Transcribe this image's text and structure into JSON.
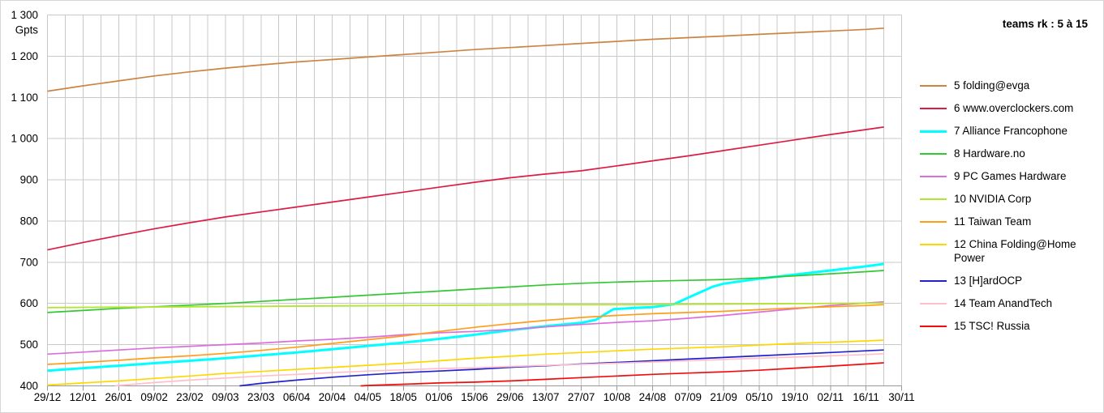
{
  "title": "teams rk : 5 à 15",
  "y_axis": {
    "unit": "Gpts",
    "min": 400,
    "max": 1300,
    "step": 100,
    "labels": [
      "1 300",
      "1 200",
      "1 100",
      "1 000",
      "900",
      "800",
      "700",
      "600",
      "500",
      "400"
    ]
  },
  "x_axis": {
    "labels": [
      "29/12",
      "12/01",
      "26/01",
      "09/02",
      "23/02",
      "09/03",
      "23/03",
      "06/04",
      "20/04",
      "04/05",
      "18/05",
      "01/06",
      "15/06",
      "29/06",
      "13/07",
      "27/07",
      "10/08",
      "24/08",
      "07/09",
      "21/09",
      "05/10",
      "19/10",
      "02/11",
      "16/11",
      "30/11"
    ]
  },
  "chart_data": {
    "type": "line",
    "title": "teams rk : 5 à 15",
    "xlabel": "",
    "ylabel": "Gpts",
    "ylim": [
      400,
      1300
    ],
    "grid": "on",
    "legend_position": "right",
    "x_tick_unit_days": 14,
    "categories": [
      "29/12",
      "12/01",
      "26/01",
      "09/02",
      "23/02",
      "09/03",
      "23/03",
      "06/04",
      "20/04",
      "04/05",
      "18/05",
      "01/06",
      "15/06",
      "29/06",
      "13/07",
      "27/07",
      "10/08",
      "24/08",
      "07/09",
      "21/09",
      "05/10",
      "19/10",
      "02/11",
      "16/11",
      "30/11"
    ],
    "series": [
      {
        "rank": 5,
        "name": "folding@evga",
        "label": "5 folding@evga",
        "color": "#cd8442",
        "width": 1.7,
        "points": [
          [
            0,
            1115
          ],
          [
            1,
            1128
          ],
          [
            2,
            1140
          ],
          [
            3,
            1152
          ],
          [
            4,
            1162
          ],
          [
            5,
            1171
          ],
          [
            6,
            1179
          ],
          [
            7,
            1186
          ],
          [
            8,
            1192
          ],
          [
            9,
            1198
          ],
          [
            10,
            1204
          ],
          [
            11,
            1210
          ],
          [
            12,
            1216
          ],
          [
            13,
            1221
          ],
          [
            14,
            1226
          ],
          [
            15,
            1231
          ],
          [
            16,
            1236
          ],
          [
            17,
            1241
          ],
          [
            18,
            1245
          ],
          [
            19,
            1249
          ],
          [
            20,
            1253
          ],
          [
            21,
            1257
          ],
          [
            22,
            1261
          ],
          [
            23,
            1265
          ],
          [
            23.5,
            1268
          ]
        ]
      },
      {
        "rank": 6,
        "name": "www.overclockers.com",
        "label": "6 www.overclockers.com",
        "color": "#dc1c44",
        "width": 1.7,
        "points": [
          [
            0,
            730
          ],
          [
            1,
            748
          ],
          [
            2,
            765
          ],
          [
            3,
            781
          ],
          [
            4,
            796
          ],
          [
            5,
            810
          ],
          [
            6,
            822
          ],
          [
            7,
            834
          ],
          [
            8,
            846
          ],
          [
            9,
            858
          ],
          [
            10,
            870
          ],
          [
            11,
            882
          ],
          [
            12,
            894
          ],
          [
            13,
            905
          ],
          [
            14,
            914
          ],
          [
            15,
            922
          ],
          [
            16,
            934
          ],
          [
            17,
            946
          ],
          [
            18,
            958
          ],
          [
            19,
            971
          ],
          [
            20,
            984
          ],
          [
            21,
            997
          ],
          [
            22,
            1010
          ],
          [
            23,
            1022
          ],
          [
            23.5,
            1028
          ]
        ]
      },
      {
        "rank": 7,
        "name": "Alliance Francophone",
        "label": "7 Alliance Francophone",
        "color": "#00ffff",
        "width": 3,
        "points": [
          [
            0,
            437
          ],
          [
            1,
            443
          ],
          [
            2,
            449
          ],
          [
            3,
            455
          ],
          [
            4,
            461
          ],
          [
            5,
            467
          ],
          [
            6,
            474
          ],
          [
            7,
            481
          ],
          [
            8,
            489
          ],
          [
            9,
            497
          ],
          [
            10,
            505
          ],
          [
            11,
            514
          ],
          [
            12,
            524
          ],
          [
            13,
            535
          ],
          [
            14,
            545
          ],
          [
            15,
            553
          ],
          [
            15.4,
            560
          ],
          [
            15.9,
            586
          ],
          [
            16.5,
            589
          ],
          [
            17,
            591
          ],
          [
            17.6,
            598
          ],
          [
            18,
            614
          ],
          [
            18.7,
            641
          ],
          [
            19,
            648
          ],
          [
            20,
            660
          ],
          [
            21,
            670
          ],
          [
            22,
            680
          ],
          [
            23,
            690
          ],
          [
            23.5,
            696
          ]
        ]
      },
      {
        "rank": 8,
        "name": "Hardware.no",
        "label": "8 Hardware.no",
        "color": "#32c832",
        "width": 1.7,
        "points": [
          [
            0,
            578
          ],
          [
            1,
            583
          ],
          [
            2,
            588
          ],
          [
            3,
            592
          ],
          [
            4,
            596
          ],
          [
            5,
            600
          ],
          [
            6,
            605
          ],
          [
            7,
            610
          ],
          [
            8,
            615
          ],
          [
            9,
            620
          ],
          [
            10,
            625
          ],
          [
            11,
            630
          ],
          [
            12,
            635
          ],
          [
            13,
            640
          ],
          [
            14,
            645
          ],
          [
            15,
            649
          ],
          [
            16,
            652
          ],
          [
            17,
            654
          ],
          [
            18,
            656
          ],
          [
            19,
            658
          ],
          [
            20,
            662
          ],
          [
            21,
            667
          ],
          [
            22,
            672
          ],
          [
            23,
            677
          ],
          [
            23.5,
            680
          ]
        ]
      },
      {
        "rank": 9,
        "name": "PC Games Hardware",
        "label": "9 PC Games Hardware",
        "color": "#dc6edc",
        "width": 1.7,
        "points": [
          [
            0,
            477
          ],
          [
            1,
            482
          ],
          [
            2,
            487
          ],
          [
            3,
            492
          ],
          [
            4,
            496
          ],
          [
            5,
            500
          ],
          [
            6,
            504
          ],
          [
            7,
            509
          ],
          [
            8,
            513
          ],
          [
            9,
            518
          ],
          [
            10,
            524
          ],
          [
            11,
            529
          ],
          [
            12,
            532
          ],
          [
            13,
            537
          ],
          [
            14,
            543
          ],
          [
            15,
            549
          ],
          [
            16,
            554
          ],
          [
            17,
            558
          ],
          [
            18,
            564
          ],
          [
            19,
            571
          ],
          [
            20,
            579
          ],
          [
            21,
            587
          ],
          [
            22,
            595
          ],
          [
            23,
            601
          ],
          [
            23.5,
            604
          ]
        ]
      },
      {
        "rank": 10,
        "name": "NVIDIA Corp",
        "label": "10 NVIDIA Corp",
        "color": "#b3e432",
        "width": 1.8,
        "points": [
          [
            0,
            590
          ],
          [
            2,
            591
          ],
          [
            4,
            592
          ],
          [
            6,
            593
          ],
          [
            8,
            594
          ],
          [
            10,
            595
          ],
          [
            12,
            596
          ],
          [
            14,
            597
          ],
          [
            16,
            597
          ],
          [
            18,
            598
          ],
          [
            20,
            599
          ],
          [
            22,
            600
          ],
          [
            23.5,
            601
          ]
        ]
      },
      {
        "rank": 11,
        "name": "Taiwan Team",
        "label": "11 Taiwan Team",
        "color": "#ff9e1b",
        "width": 1.7,
        "points": [
          [
            0,
            452
          ],
          [
            1,
            457
          ],
          [
            2,
            462
          ],
          [
            3,
            468
          ],
          [
            4,
            473
          ],
          [
            5,
            479
          ],
          [
            6,
            486
          ],
          [
            7,
            494
          ],
          [
            8,
            503
          ],
          [
            9,
            512
          ],
          [
            10,
            521
          ],
          [
            11,
            532
          ],
          [
            12,
            542
          ],
          [
            13,
            551
          ],
          [
            14,
            559
          ],
          [
            15,
            566
          ],
          [
            16,
            571
          ],
          [
            17,
            575
          ],
          [
            18,
            578
          ],
          [
            19,
            581
          ],
          [
            20,
            585
          ],
          [
            21,
            589
          ],
          [
            22,
            592
          ],
          [
            23,
            595
          ],
          [
            23.5,
            597
          ]
        ]
      },
      {
        "rank": 12,
        "name": "China Folding@Home Power",
        "label": "12 China Folding@Home Power",
        "color": "#ffd700",
        "width": 1.7,
        "points": [
          [
            0,
            402
          ],
          [
            1,
            407
          ],
          [
            2,
            412
          ],
          [
            3,
            418
          ],
          [
            4,
            424
          ],
          [
            5,
            430
          ],
          [
            6,
            435
          ],
          [
            7,
            440
          ],
          [
            8,
            445
          ],
          [
            9,
            450
          ],
          [
            10,
            455
          ],
          [
            11,
            461
          ],
          [
            12,
            467
          ],
          [
            13,
            472
          ],
          [
            14,
            477
          ],
          [
            15,
            481
          ],
          [
            16,
            485
          ],
          [
            17,
            489
          ],
          [
            18,
            492
          ],
          [
            19,
            495
          ],
          [
            20,
            499
          ],
          [
            21,
            503
          ],
          [
            22,
            506
          ],
          [
            23,
            509
          ],
          [
            23.5,
            511
          ]
        ]
      },
      {
        "rank": 13,
        "name": "[H]ardOCP",
        "label": "13 [H]ardOCP",
        "color": "#2222cc",
        "width": 1.7,
        "points": [
          [
            5.4,
            400
          ],
          [
            6,
            406
          ],
          [
            7,
            414
          ],
          [
            8,
            421
          ],
          [
            9,
            427
          ],
          [
            10,
            432
          ],
          [
            11,
            436
          ],
          [
            12,
            440
          ],
          [
            13,
            445
          ],
          [
            14,
            449
          ],
          [
            15,
            453
          ],
          [
            16,
            457
          ],
          [
            17,
            461
          ],
          [
            18,
            465
          ],
          [
            19,
            469
          ],
          [
            20,
            473
          ],
          [
            21,
            477
          ],
          [
            22,
            481
          ],
          [
            23,
            485
          ],
          [
            23.5,
            487
          ]
        ]
      },
      {
        "rank": 14,
        "name": "Team AnandTech",
        "label": "14 Team AnandTech",
        "color": "#ffc0cb",
        "width": 1.7,
        "points": [
          [
            1.9,
            400
          ],
          [
            2,
            401
          ],
          [
            3,
            408
          ],
          [
            4,
            414
          ],
          [
            5,
            419
          ],
          [
            6,
            424
          ],
          [
            7,
            428
          ],
          [
            8,
            432
          ],
          [
            9,
            436
          ],
          [
            10,
            439
          ],
          [
            11,
            442
          ],
          [
            12,
            444
          ],
          [
            13,
            447
          ],
          [
            14,
            450
          ],
          [
            15,
            452
          ],
          [
            16,
            455
          ],
          [
            17,
            458
          ],
          [
            18,
            461
          ],
          [
            19,
            464
          ],
          [
            20,
            467
          ],
          [
            21,
            470
          ],
          [
            22,
            473
          ],
          [
            23,
            476
          ],
          [
            23.5,
            478
          ]
        ]
      },
      {
        "rank": 15,
        "name": "TSC! Russia",
        "label": "15 TSC! Russia",
        "color": "#f20d0d",
        "width": 1.7,
        "points": [
          [
            8.8,
            400
          ],
          [
            9,
            401
          ],
          [
            10,
            404
          ],
          [
            11,
            407
          ],
          [
            12,
            409
          ],
          [
            13,
            412
          ],
          [
            14,
            416
          ],
          [
            15,
            420
          ],
          [
            16,
            424
          ],
          [
            17,
            428
          ],
          [
            18,
            431
          ],
          [
            19,
            434
          ],
          [
            20,
            438
          ],
          [
            21,
            443
          ],
          [
            22,
            448
          ],
          [
            23,
            453
          ],
          [
            23.5,
            456
          ]
        ]
      }
    ]
  },
  "colors": {
    "grid": "#c9c9c9",
    "axis": "#999999",
    "text": "#000000",
    "background": "#ffffff"
  }
}
